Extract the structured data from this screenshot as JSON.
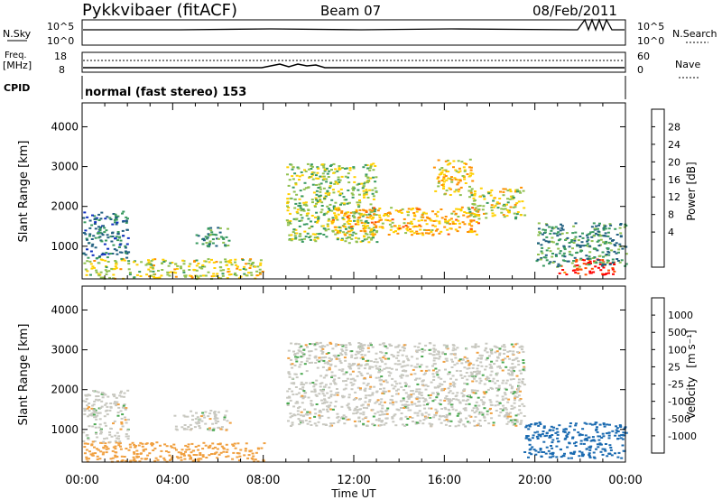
{
  "header": {
    "station": "Pykkvibaer (fitACF)",
    "beam": "Beam 07",
    "date": "08/Feb/2011"
  },
  "top_panels": {
    "nsky_label": "N.Sky",
    "nsky_ticks": [
      "10^5",
      "10^0"
    ],
    "nsearch_label": "N.Search",
    "nsearch_ticks": [
      "10^5",
      "10^0"
    ],
    "freq_label": "Freq.",
    "freq_unit": "[MHz]",
    "freq_ticks": [
      "18",
      "8"
    ],
    "nave_label": "Nave",
    "nave_ticks": [
      "60",
      "0"
    ],
    "cpid_label": "CPID",
    "cpid_text": "normal (fast stereo) 153"
  },
  "chart_data": [
    {
      "type": "heatmap",
      "name": "power",
      "ylabel": "Slant Range [km]",
      "yticks": [
        1000,
        2000,
        3000,
        4000
      ],
      "ylim": [
        180,
        4600
      ],
      "xlim": [
        0,
        24
      ],
      "colorbar": {
        "label": "Power [dB]",
        "ticks": [
          "28",
          "24",
          "20",
          "16",
          "12",
          "8",
          "4"
        ],
        "colors": [
          "#ff0000",
          "#ff5000",
          "#ff9000",
          "#ffd000",
          "#90c050",
          "#3a9a60",
          "#226080",
          "#1030c0",
          "#0020ff"
        ]
      },
      "regions": [
        {
          "t0": 9.0,
          "t1": 13.0,
          "r0": 1100,
          "r1": 3100,
          "level": 14
        },
        {
          "t0": 11.0,
          "t1": 17.5,
          "r0": 1300,
          "r1": 2000,
          "level": 20
        },
        {
          "t0": 15.5,
          "t1": 17.2,
          "r0": 2300,
          "r1": 3200,
          "level": 18
        },
        {
          "t0": 17.0,
          "t1": 19.5,
          "r0": 1700,
          "r1": 2500,
          "level": 16
        },
        {
          "t0": 21.0,
          "t1": 23.5,
          "r0": 300,
          "r1": 700,
          "level": 28
        },
        {
          "t0": 20.0,
          "t1": 24.0,
          "r0": 500,
          "r1": 1600,
          "level": 9
        },
        {
          "t0": 0.0,
          "t1": 8.0,
          "r0": 200,
          "r1": 700,
          "level": 16
        },
        {
          "t0": 5.0,
          "t1": 6.5,
          "r0": 1000,
          "r1": 1500,
          "level": 10
        },
        {
          "t0": 0.0,
          "t1": 2.0,
          "r0": 700,
          "r1": 1900,
          "level": 7
        }
      ]
    },
    {
      "type": "heatmap",
      "name": "velocity",
      "ylabel": "Slant Range [km]",
      "xlabel": "Time UT",
      "xticks": [
        "00:00",
        "04:00",
        "08:00",
        "12:00",
        "16:00",
        "20:00",
        "00:00"
      ],
      "yticks": [
        1000,
        2000,
        3000,
        4000
      ],
      "ylim": [
        180,
        4600
      ],
      "xlim": [
        0,
        24
      ],
      "colorbar": {
        "label": "Velocity",
        "unit": "[m s⁻¹]",
        "ticks": [
          "1000",
          "500",
          "100",
          "25",
          "-25",
          "-100",
          "-500",
          "-1000"
        ],
        "colors": [
          "#2040c0",
          "#1a6ab0",
          "#1a8c70",
          "#4aa850",
          "#c8c8c0",
          "#f0a040",
          "#ff8000",
          "#ff4000",
          "#ff0000"
        ]
      },
      "regions": [
        {
          "t0": 9.0,
          "t1": 19.5,
          "r0": 1100,
          "r1": 3200,
          "velocity": 0
        },
        {
          "t0": 19.5,
          "t1": 24.0,
          "r0": 300,
          "r1": 1200,
          "velocity": 700
        },
        {
          "t0": 0.0,
          "t1": 8.0,
          "r0": 200,
          "r1": 700,
          "velocity": -60
        },
        {
          "t0": 0.0,
          "t1": 2.0,
          "r0": 700,
          "r1": 2000,
          "velocity": 0
        },
        {
          "t0": 4.0,
          "t1": 6.5,
          "r0": 1000,
          "r1": 1500,
          "velocity": 0
        }
      ]
    }
  ]
}
